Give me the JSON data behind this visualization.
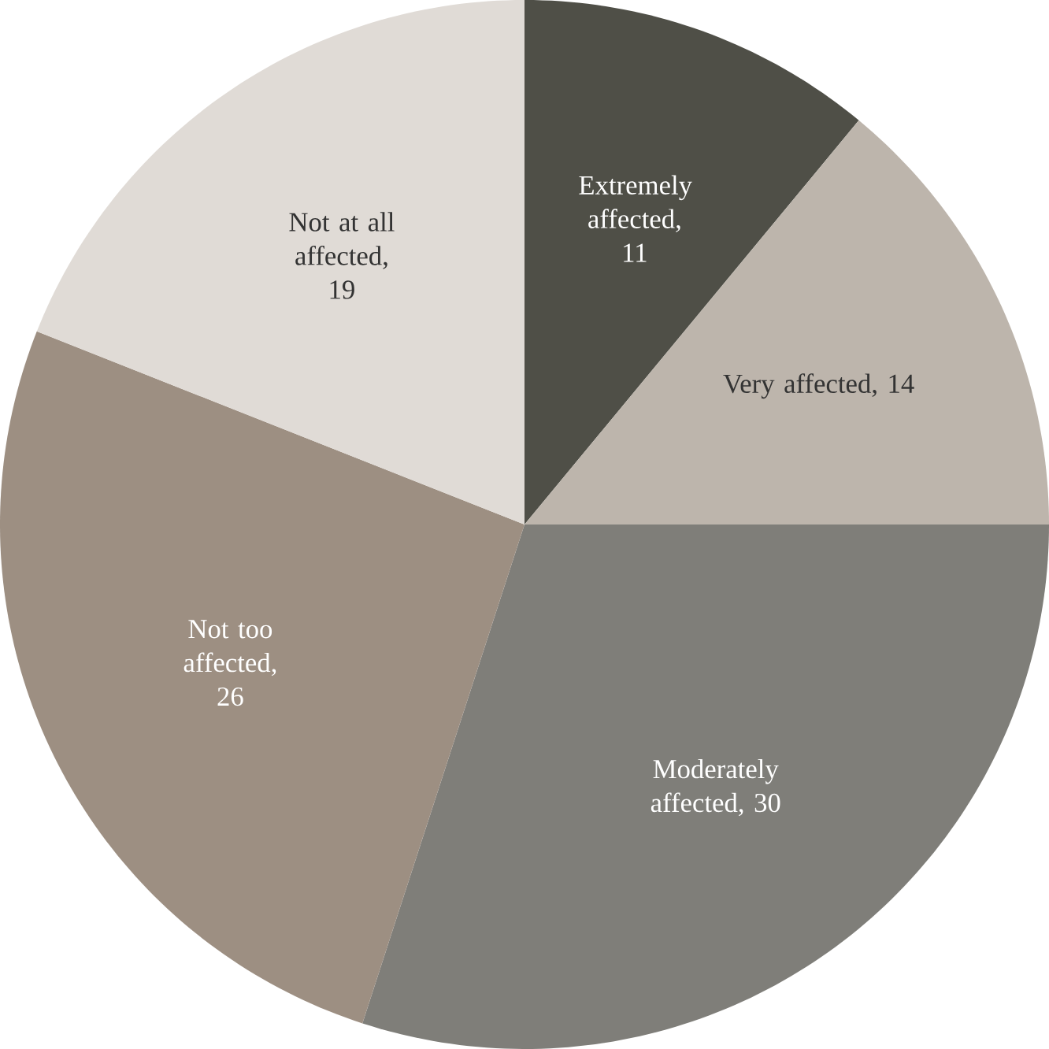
{
  "chart_data": {
    "type": "pie",
    "categories": [
      "Extremely affected, 11",
      "Very affected, 14",
      "Moderately affected, 30",
      "Not too affected, 26",
      "Not at all affected, 19"
    ],
    "values": [
      11,
      14,
      30,
      26,
      19
    ],
    "colors": [
      "#4f4f47",
      "#bdb5ac",
      "#7f7e79",
      "#9d8f82",
      "#e0dbd6"
    ]
  }
}
